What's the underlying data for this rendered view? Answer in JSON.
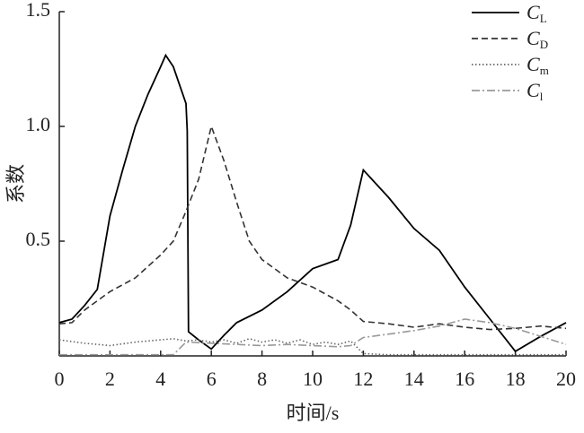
{
  "chart_data": {
    "type": "line",
    "xlabel": "时间/s",
    "ylabel": "系数",
    "xlim": [
      0,
      20
    ],
    "ylim": [
      0,
      1.5
    ],
    "xticks": [
      0,
      2,
      4,
      6,
      8,
      10,
      12,
      14,
      16,
      18,
      20
    ],
    "yticks": [
      0.5,
      {
        "value": 1,
        "label": "1.0"
      },
      1.5
    ],
    "grid": false,
    "legend": "upper right",
    "series": [
      {
        "name": "CL",
        "color": "#000000",
        "linestyle": "solid",
        "x": [
          0,
          0.5,
          1,
          1.5,
          2,
          2.5,
          3,
          3.5,
          4,
          4.2,
          4.5,
          5,
          5.05,
          5.1,
          5.5,
          6,
          6.5,
          7,
          8,
          9,
          10,
          11,
          11.5,
          12,
          13,
          14,
          15,
          16,
          17,
          18,
          19,
          20
        ],
        "values": [
          0.145,
          0.16,
          0.22,
          0.29,
          0.61,
          0.81,
          1.0,
          1.14,
          1.26,
          1.31,
          1.26,
          1.1,
          0.98,
          0.105,
          0.07,
          0.03,
          0.09,
          0.145,
          0.2,
          0.28,
          0.38,
          0.42,
          0.57,
          0.81,
          0.69,
          0.555,
          0.46,
          0.3,
          0.16,
          0.02,
          0.085,
          0.145
        ]
      },
      {
        "name": "CD",
        "color": "#333333",
        "linestyle": "dashed",
        "x": [
          0,
          0.5,
          1,
          2,
          3,
          4,
          4.5,
          5,
          5.5,
          6,
          6.5,
          7,
          7.5,
          8,
          9,
          10,
          11,
          11.5,
          12,
          13,
          14,
          15,
          16,
          17,
          18,
          19,
          20
        ],
        "values": [
          0.14,
          0.145,
          0.2,
          0.28,
          0.34,
          0.44,
          0.5,
          0.63,
          0.77,
          1.0,
          0.85,
          0.67,
          0.5,
          0.42,
          0.34,
          0.3,
          0.24,
          0.2,
          0.15,
          0.14,
          0.125,
          0.14,
          0.125,
          0.115,
          0.12,
          0.13,
          0.12
        ]
      },
      {
        "name": "Cm",
        "color": "#666666",
        "linestyle": "dotted",
        "x": [
          0,
          1,
          2,
          3,
          4,
          4.5,
          5,
          5.5,
          6,
          6.5,
          7,
          7.5,
          8,
          8.5,
          9,
          9.5,
          10,
          10.5,
          11,
          11.5,
          12,
          13,
          20
        ],
        "values": [
          0.07,
          0.055,
          0.045,
          0.06,
          0.07,
          0.075,
          0.065,
          0.07,
          0.06,
          0.07,
          0.055,
          0.075,
          0.06,
          0.07,
          0.055,
          0.07,
          0.05,
          0.06,
          0.05,
          0.065,
          0.01,
          0.005,
          0.005
        ]
      },
      {
        "name": "Cl",
        "color": "#999999",
        "linestyle": "dashdot",
        "x": [
          0,
          4.5,
          5,
          6,
          7,
          8,
          9,
          10,
          11,
          11.5,
          12,
          13,
          14,
          15,
          16,
          17,
          18,
          19,
          20
        ],
        "values": [
          0.005,
          0.005,
          0.06,
          0.055,
          0.05,
          0.045,
          0.05,
          0.045,
          0.04,
          0.045,
          0.08,
          0.095,
          0.11,
          0.13,
          0.16,
          0.145,
          0.12,
          0.085,
          0.05
        ]
      }
    ]
  }
}
